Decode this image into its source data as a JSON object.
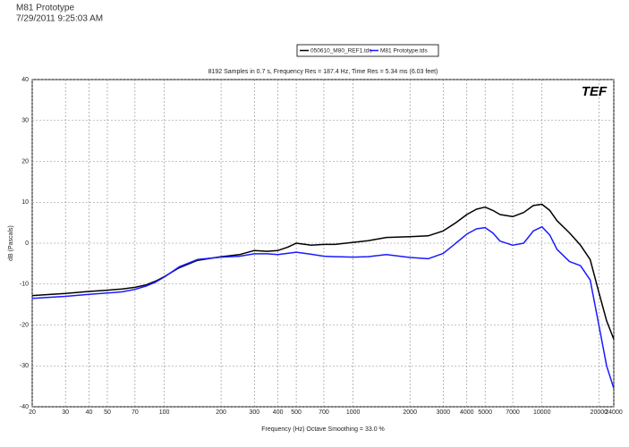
{
  "header": {
    "title": "M81 Prototype",
    "timestamp": "7/29/2011 9:25:03 AM",
    "logo": "TEF"
  },
  "chart_data": {
    "type": "line",
    "subtitle": "8192 Samples in 0.7 s, Frequency Res = 187.4 Hz, Time Res = 5.34 ms (6.03 feet)",
    "ylabel": "dB (Pascals)",
    "xlabel": "Frequency (Hz) Octave Smoothing = 33.0 %",
    "xscale": "log",
    "grid": true,
    "legend": "top",
    "xlim": [
      20,
      24000
    ],
    "ylim": [
      -40,
      40
    ],
    "xticks": [
      20,
      30,
      40,
      50,
      70,
      100,
      200,
      300,
      400,
      500,
      700,
      1000,
      2000,
      3000,
      4000,
      5000,
      7000,
      10000,
      20000,
      24000
    ],
    "yticks": [
      -40,
      -30,
      -20,
      -10,
      0,
      10,
      20,
      30,
      40
    ],
    "x": [
      20,
      30,
      40,
      50,
      60,
      70,
      80,
      90,
      100,
      120,
      150,
      200,
      250,
      300,
      350,
      400,
      450,
      500,
      600,
      700,
      800,
      1000,
      1200,
      1500,
      2000,
      2500,
      3000,
      3500,
      4000,
      4500,
      5000,
      5500,
      6000,
      7000,
      8000,
      9000,
      10000,
      11000,
      12000,
      14000,
      16000,
      18000,
      20000,
      22000,
      24000
    ],
    "series": [
      {
        "name": "050610_M80_REF1.tds",
        "color": "#000000",
        "values": [
          -12.8,
          -12.3,
          -11.8,
          -11.5,
          -11.2,
          -10.8,
          -10.2,
          -9.3,
          -8.2,
          -6.0,
          -4.2,
          -3.3,
          -2.8,
          -1.8,
          -2.0,
          -1.8,
          -1.0,
          0,
          -0.5,
          -0.3,
          -0.3,
          0.2,
          0.6,
          1.4,
          1.6,
          1.8,
          3.0,
          5.0,
          7.0,
          8.3,
          8.8,
          8.0,
          7.0,
          6.5,
          7.5,
          9.2,
          9.5,
          8.0,
          5.5,
          2.5,
          -0.5,
          -4,
          -12,
          -19,
          -23.5
        ]
      },
      {
        "name": "M81 Prototype.tds",
        "color": "#1a1aff",
        "values": [
          -13.5,
          -13,
          -12.5,
          -12.2,
          -11.9,
          -11.3,
          -10.5,
          -9.5,
          -8.3,
          -5.8,
          -4.0,
          -3.4,
          -3.2,
          -2.6,
          -2.6,
          -2.8,
          -2.5,
          -2.2,
          -2.7,
          -3.2,
          -3.3,
          -3.4,
          -3.3,
          -2.8,
          -3.5,
          -3.8,
          -2.5,
          0,
          2.2,
          3.5,
          3.8,
          2.5,
          0.5,
          -0.5,
          0,
          3,
          4,
          2,
          -1.5,
          -4.5,
          -5.5,
          -9,
          -20,
          -30,
          -35.5
        ]
      }
    ]
  }
}
